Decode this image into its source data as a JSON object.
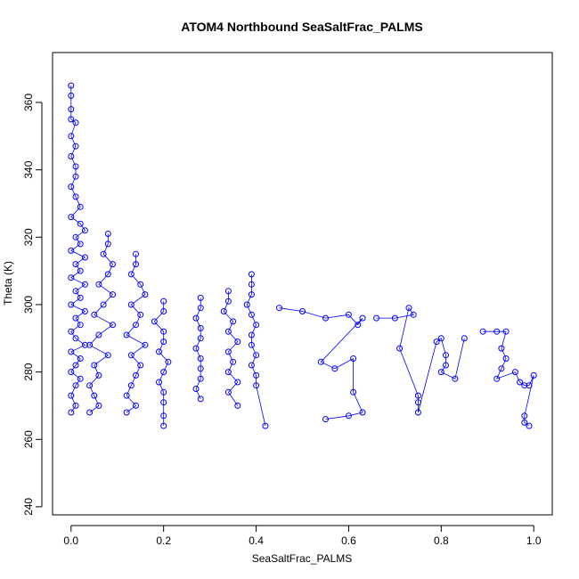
{
  "chart_data": {
    "type": "scatter",
    "title": "ATOM4 Northbound SeaSaltFrac_PALMS",
    "xlabel": "SeaSaltFrac_PALMS",
    "ylabel": "Theta (K)",
    "xlim": [
      -0.04,
      1.04
    ],
    "ylim": [
      237.6,
      374.8
    ],
    "xticks": [
      0.0,
      0.2,
      0.4,
      0.6,
      0.8,
      1.0
    ],
    "xtick_labels": [
      "0.0",
      "0.2",
      "0.4",
      "0.6",
      "0.8",
      "1.0"
    ],
    "yticks": [
      240,
      260,
      280,
      300,
      320,
      340,
      360
    ],
    "ytick_labels": [
      "240",
      "260",
      "280",
      "300",
      "320",
      "340",
      "360"
    ],
    "grid": false,
    "marker": "open-circle",
    "lines_connect_points": true,
    "series_color": "#0000ff",
    "series": [
      {
        "points": [
          [
            0.0,
            365
          ],
          [
            0.0,
            362
          ],
          [
            0.0,
            358
          ],
          [
            0.0,
            355
          ],
          [
            0.01,
            354
          ],
          [
            0.0,
            350
          ],
          [
            0.01,
            347
          ],
          [
            0.0,
            344
          ],
          [
            0.01,
            341
          ],
          [
            0.01,
            338
          ],
          [
            0.0,
            335
          ],
          [
            0.01,
            332
          ],
          [
            0.02,
            329
          ],
          [
            0.0,
            326
          ],
          [
            0.02,
            324
          ],
          [
            0.03,
            322
          ],
          [
            0.01,
            320
          ],
          [
            0.02,
            318
          ],
          [
            0.0,
            316
          ],
          [
            0.03,
            314
          ],
          [
            0.01,
            312
          ],
          [
            0.02,
            310
          ],
          [
            0.0,
            308
          ],
          [
            0.03,
            306
          ],
          [
            0.01,
            304
          ],
          [
            0.02,
            302
          ],
          [
            0.0,
            300
          ],
          [
            0.03,
            298
          ],
          [
            0.01,
            296
          ],
          [
            0.02,
            294
          ],
          [
            0.0,
            292
          ],
          [
            0.01,
            290
          ],
          [
            0.03,
            288
          ],
          [
            0.0,
            286
          ],
          [
            0.02,
            284
          ],
          [
            0.01,
            282
          ],
          [
            0.0,
            280
          ],
          [
            0.02,
            278
          ],
          [
            0.01,
            276
          ],
          [
            0.0,
            273
          ],
          [
            0.01,
            270
          ],
          [
            0.0,
            268
          ]
        ]
      },
      {
        "points": [
          [
            0.08,
            321
          ],
          [
            0.08,
            318
          ],
          [
            0.07,
            315
          ],
          [
            0.09,
            312
          ],
          [
            0.08,
            309
          ],
          [
            0.06,
            306
          ],
          [
            0.09,
            303
          ],
          [
            0.07,
            300
          ],
          [
            0.05,
            297
          ],
          [
            0.09,
            294
          ],
          [
            0.06,
            291
          ],
          [
            0.04,
            288
          ],
          [
            0.08,
            285
          ],
          [
            0.05,
            282
          ],
          [
            0.06,
            279
          ],
          [
            0.04,
            276
          ],
          [
            0.05,
            273
          ],
          [
            0.06,
            270
          ],
          [
            0.04,
            268
          ]
        ]
      },
      {
        "points": [
          [
            0.14,
            315
          ],
          [
            0.14,
            312
          ],
          [
            0.13,
            309
          ],
          [
            0.15,
            306
          ],
          [
            0.16,
            303
          ],
          [
            0.13,
            300
          ],
          [
            0.15,
            297
          ],
          [
            0.14,
            294
          ],
          [
            0.12,
            291
          ],
          [
            0.16,
            288
          ],
          [
            0.13,
            285
          ],
          [
            0.15,
            282
          ],
          [
            0.14,
            279
          ],
          [
            0.13,
            276
          ],
          [
            0.12,
            273
          ],
          [
            0.14,
            270
          ],
          [
            0.12,
            268
          ]
        ]
      },
      {
        "points": [
          [
            0.2,
            301
          ],
          [
            0.2,
            298
          ],
          [
            0.18,
            295
          ],
          [
            0.2,
            292
          ],
          [
            0.2,
            289
          ],
          [
            0.19,
            286
          ],
          [
            0.21,
            283
          ],
          [
            0.2,
            280
          ],
          [
            0.19,
            277
          ],
          [
            0.2,
            274
          ],
          [
            0.2,
            271
          ],
          [
            0.2,
            267
          ],
          [
            0.2,
            264
          ]
        ]
      },
      {
        "points": [
          [
            0.28,
            302
          ],
          [
            0.28,
            299
          ],
          [
            0.27,
            296
          ],
          [
            0.28,
            293
          ],
          [
            0.28,
            290
          ],
          [
            0.27,
            287
          ],
          [
            0.28,
            284
          ],
          [
            0.28,
            281
          ],
          [
            0.28,
            278
          ],
          [
            0.27,
            275
          ],
          [
            0.28,
            272
          ]
        ]
      },
      {
        "points": [
          [
            0.34,
            304
          ],
          [
            0.34,
            301
          ],
          [
            0.33,
            298
          ],
          [
            0.35,
            295
          ],
          [
            0.34,
            292
          ],
          [
            0.36,
            289
          ],
          [
            0.34,
            286
          ],
          [
            0.35,
            283
          ],
          [
            0.34,
            280
          ],
          [
            0.36,
            277
          ],
          [
            0.34,
            274
          ],
          [
            0.36,
            270
          ]
        ]
      },
      {
        "points": [
          [
            0.39,
            309
          ],
          [
            0.39,
            306
          ],
          [
            0.39,
            303
          ],
          [
            0.38,
            300
          ],
          [
            0.39,
            297
          ],
          [
            0.4,
            294
          ],
          [
            0.39,
            291
          ],
          [
            0.39,
            288
          ],
          [
            0.4,
            285
          ],
          [
            0.39,
            282
          ],
          [
            0.4,
            279
          ],
          [
            0.4,
            276
          ],
          [
            0.42,
            264
          ]
        ]
      },
      {
        "points": [
          [
            0.45,
            299
          ],
          [
            0.5,
            298
          ],
          [
            0.55,
            296
          ],
          [
            0.6,
            297
          ],
          [
            0.62,
            294
          ],
          [
            0.63,
            296
          ],
          [
            0.54,
            283
          ],
          [
            0.57,
            281
          ],
          [
            0.61,
            284
          ],
          [
            0.61,
            274
          ],
          [
            0.63,
            268
          ],
          [
            0.6,
            267
          ],
          [
            0.55,
            266
          ]
        ]
      },
      {
        "points": [
          [
            0.66,
            296
          ],
          [
            0.7,
            296
          ],
          [
            0.74,
            297
          ],
          [
            0.73,
            299
          ],
          [
            0.71,
            287
          ],
          [
            0.75,
            273
          ],
          [
            0.75,
            271
          ],
          [
            0.75,
            268
          ],
          [
            0.79,
            289
          ],
          [
            0.8,
            290
          ],
          [
            0.81,
            285
          ],
          [
            0.81,
            282
          ],
          [
            0.8,
            280
          ],
          [
            0.83,
            278
          ],
          [
            0.85,
            290
          ]
        ]
      },
      {
        "points": [
          [
            0.89,
            292
          ],
          [
            0.92,
            292
          ],
          [
            0.94,
            292
          ],
          [
            0.93,
            287
          ],
          [
            0.94,
            284
          ],
          [
            0.93,
            281
          ],
          [
            0.92,
            278
          ],
          [
            0.96,
            280
          ],
          [
            0.97,
            277
          ],
          [
            0.98,
            276
          ],
          [
            0.99,
            276
          ],
          [
            1.0,
            279
          ],
          [
            0.98,
            267
          ],
          [
            0.98,
            265
          ],
          [
            0.99,
            264
          ]
        ]
      }
    ]
  }
}
